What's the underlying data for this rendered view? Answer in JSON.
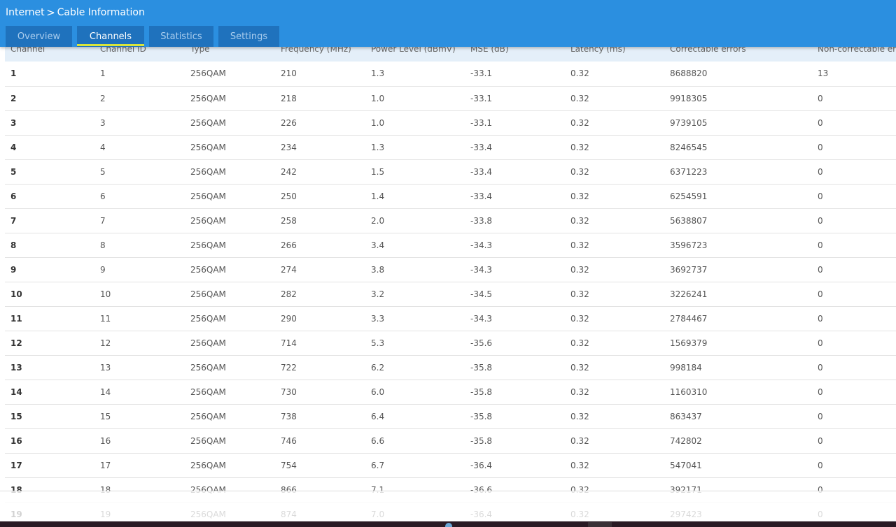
{
  "breadcrumb": {
    "parent": "Internet",
    "separator": ">",
    "current": "Cable Information"
  },
  "tabs": [
    {
      "label": "Overview",
      "active": false
    },
    {
      "label": "Channels",
      "active": true
    },
    {
      "label": "Statistics",
      "active": false
    },
    {
      "label": "Settings",
      "active": false
    }
  ],
  "colors": {
    "header": "#2b8fe0",
    "tab": "#1f72bd",
    "tab_active_underline": "#d8e53c",
    "table_header": "#e4eff9"
  },
  "table": {
    "columns": [
      "Channel",
      "Channel ID",
      "Type",
      "Frequency (MHz)",
      "Power Level (dBmV)",
      "MSE (dB)",
      "Latency (ms)",
      "Correctable errors",
      "Non-correctable errors"
    ],
    "rows": [
      [
        "1",
        "1",
        "256QAM",
        "210",
        "1.3",
        "-33.1",
        "0.32",
        "8688820",
        "13"
      ],
      [
        "2",
        "2",
        "256QAM",
        "218",
        "1.0",
        "-33.1",
        "0.32",
        "9918305",
        "0"
      ],
      [
        "3",
        "3",
        "256QAM",
        "226",
        "1.0",
        "-33.1",
        "0.32",
        "9739105",
        "0"
      ],
      [
        "4",
        "4",
        "256QAM",
        "234",
        "1.3",
        "-33.4",
        "0.32",
        "8246545",
        "0"
      ],
      [
        "5",
        "5",
        "256QAM",
        "242",
        "1.5",
        "-33.4",
        "0.32",
        "6371223",
        "0"
      ],
      [
        "6",
        "6",
        "256QAM",
        "250",
        "1.4",
        "-33.4",
        "0.32",
        "6254591",
        "0"
      ],
      [
        "7",
        "7",
        "256QAM",
        "258",
        "2.0",
        "-33.8",
        "0.32",
        "5638807",
        "0"
      ],
      [
        "8",
        "8",
        "256QAM",
        "266",
        "3.4",
        "-34.3",
        "0.32",
        "3596723",
        "0"
      ],
      [
        "9",
        "9",
        "256QAM",
        "274",
        "3.8",
        "-34.3",
        "0.32",
        "3692737",
        "0"
      ],
      [
        "10",
        "10",
        "256QAM",
        "282",
        "3.2",
        "-34.5",
        "0.32",
        "3226241",
        "0"
      ],
      [
        "11",
        "11",
        "256QAM",
        "290",
        "3.3",
        "-34.3",
        "0.32",
        "2784467",
        "0"
      ],
      [
        "12",
        "12",
        "256QAM",
        "714",
        "5.3",
        "-35.6",
        "0.32",
        "1569379",
        "0"
      ],
      [
        "13",
        "13",
        "256QAM",
        "722",
        "6.2",
        "-35.8",
        "0.32",
        "998184",
        "0"
      ],
      [
        "14",
        "14",
        "256QAM",
        "730",
        "6.0",
        "-35.8",
        "0.32",
        "1160310",
        "0"
      ],
      [
        "15",
        "15",
        "256QAM",
        "738",
        "6.4",
        "-35.8",
        "0.32",
        "863437",
        "0"
      ],
      [
        "16",
        "16",
        "256QAM",
        "746",
        "6.6",
        "-35.8",
        "0.32",
        "742802",
        "0"
      ],
      [
        "17",
        "17",
        "256QAM",
        "754",
        "6.7",
        "-36.4",
        "0.32",
        "547041",
        "0"
      ],
      [
        "18",
        "18",
        "256QAM",
        "866",
        "7.1",
        "-36.6",
        "0.32",
        "392171",
        "0"
      ],
      [
        "19",
        "19",
        "256QAM",
        "874",
        "7.0",
        "-36.4",
        "0.32",
        "297423",
        "0"
      ]
    ]
  }
}
